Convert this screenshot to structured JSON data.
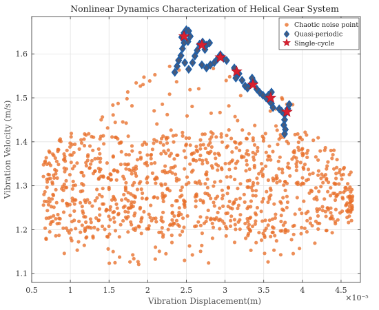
{
  "chart_data": {
    "type": "scatter",
    "title": "Nonlinear Dynamics Characterization of Helical Gear System",
    "xlabel": "Vibration Displacement(m)",
    "ylabel": "Vibration Velocity (m/s)",
    "x_exponent_label": "×10⁻⁵",
    "xlim": [
      0.5,
      4.75
    ],
    "ylim": [
      1.08,
      1.685
    ],
    "x_ticks": [
      0.5,
      1,
      1.5,
      2,
      2.5,
      3,
      3.5,
      4,
      4.5
    ],
    "x_tick_labels": [
      "0.5",
      "1",
      "1.5",
      "2",
      "2.5",
      "3",
      "3.5",
      "4",
      "4.5"
    ],
    "y_ticks": [
      1.1,
      1.2,
      1.3,
      1.4,
      1.5,
      1.6
    ],
    "y_tick_labels": [
      "1.1",
      "1.2",
      "1.3",
      "1.4",
      "1.5",
      "1.6"
    ],
    "grid": true,
    "legend_position": "top-right",
    "legend": [
      {
        "label": "Chaotic noise point",
        "marker": "circle",
        "color": "#e8702a"
      },
      {
        "label": "Quasi-periodic",
        "marker": "diamond",
        "color": "#4a5a78",
        "edge": "#1f5fa8"
      },
      {
        "label": "Single-cycle",
        "marker": "star",
        "color": "#d9202f"
      }
    ],
    "series": [
      {
        "name": "Quasi-periodic",
        "points": [
          [
            2.44,
            1.638
          ],
          [
            2.47,
            1.648
          ],
          [
            2.5,
            1.655
          ],
          [
            2.53,
            1.652
          ],
          [
            2.47,
            1.625
          ],
          [
            2.45,
            1.612
          ],
          [
            2.43,
            1.596
          ],
          [
            2.4,
            1.585
          ],
          [
            2.38,
            1.572
          ],
          [
            2.35,
            1.558
          ],
          [
            2.52,
            1.628
          ],
          [
            2.55,
            1.64
          ],
          [
            2.48,
            1.58
          ],
          [
            2.53,
            1.565
          ],
          [
            2.58,
            1.58
          ],
          [
            2.61,
            1.595
          ],
          [
            2.64,
            1.608
          ],
          [
            2.67,
            1.622
          ],
          [
            2.71,
            1.627
          ],
          [
            2.76,
            1.62
          ],
          [
            2.8,
            1.625
          ],
          [
            2.74,
            1.61
          ],
          [
            2.7,
            1.575
          ],
          [
            2.76,
            1.568
          ],
          [
            2.81,
            1.575
          ],
          [
            2.86,
            1.58
          ],
          [
            2.9,
            1.588
          ],
          [
            2.94,
            1.598
          ],
          [
            2.98,
            1.59
          ],
          [
            3.02,
            1.585
          ],
          [
            3.12,
            1.568
          ],
          [
            3.15,
            1.56
          ],
          [
            3.18,
            1.555
          ],
          [
            3.14,
            1.545
          ],
          [
            3.22,
            1.54
          ],
          [
            3.26,
            1.527
          ],
          [
            3.29,
            1.522
          ],
          [
            3.33,
            1.53
          ],
          [
            3.35,
            1.545
          ],
          [
            3.38,
            1.535
          ],
          [
            3.41,
            1.52
          ],
          [
            3.45,
            1.512
          ],
          [
            3.49,
            1.506
          ],
          [
            3.53,
            1.5
          ],
          [
            3.57,
            1.493
          ],
          [
            3.6,
            1.487
          ],
          [
            3.62,
            1.478
          ],
          [
            3.56,
            1.506
          ],
          [
            3.6,
            1.513
          ],
          [
            3.7,
            1.475
          ],
          [
            3.73,
            1.47
          ],
          [
            3.77,
            1.462
          ],
          [
            3.81,
            1.475
          ],
          [
            3.83,
            1.485
          ],
          [
            3.77,
            1.45
          ],
          [
            3.76,
            1.438
          ],
          [
            3.78,
            1.428
          ],
          [
            3.77,
            1.418
          ]
        ]
      },
      {
        "name": "Single-cycle",
        "points": [
          [
            2.47,
            1.64
          ],
          [
            2.7,
            1.62
          ],
          [
            2.94,
            1.592
          ],
          [
            3.15,
            1.56
          ],
          [
            3.36,
            1.53
          ],
          [
            3.59,
            1.5
          ],
          [
            3.8,
            1.468
          ]
        ]
      }
    ],
    "chaotic_noise": {
      "name": "Chaotic noise point",
      "count": 1100,
      "x_range": [
        0.65,
        4.65
      ],
      "y_range": [
        1.11,
        1.6
      ],
      "upper_boundary": [
        [
          0.6,
          1.36
        ],
        [
          0.9,
          1.42
        ],
        [
          1.3,
          1.44
        ],
        [
          1.6,
          1.5
        ],
        [
          1.9,
          1.56
        ],
        [
          2.2,
          1.6
        ],
        [
          2.6,
          1.58
        ],
        [
          3.0,
          1.56
        ],
        [
          3.4,
          1.54
        ],
        [
          3.8,
          1.5
        ],
        [
          4.2,
          1.44
        ],
        [
          4.65,
          1.33
        ]
      ],
      "lower_boundary": [
        [
          0.6,
          1.16
        ],
        [
          1.0,
          1.14
        ],
        [
          1.5,
          1.12
        ],
        [
          2.0,
          1.12
        ],
        [
          2.5,
          1.13
        ],
        [
          2.9,
          1.11
        ],
        [
          3.4,
          1.12
        ],
        [
          3.8,
          1.12
        ],
        [
          4.2,
          1.17
        ],
        [
          4.65,
          1.22
        ]
      ],
      "core_band": [
        1.18,
        1.42
      ]
    }
  }
}
